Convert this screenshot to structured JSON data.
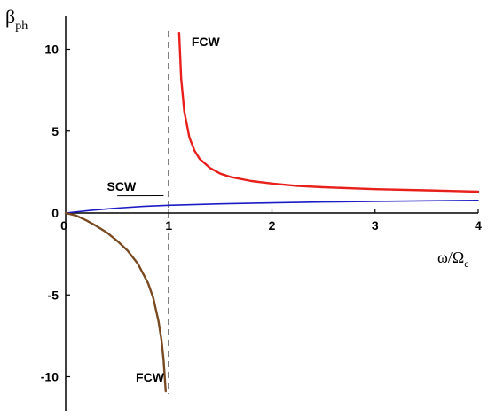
{
  "chart_data": {
    "type": "line",
    "title": "",
    "xlabel": "ω/Ω",
    "xlabel_sub": "c",
    "ylabel": "β",
    "ylabel_sub": "ph",
    "xlim": [
      0,
      4
    ],
    "ylim": [
      -12,
      12
    ],
    "x_ticks": [
      0,
      1,
      2,
      3,
      4
    ],
    "x_tick_labels": [
      "0",
      "1",
      "2",
      "3",
      "4"
    ],
    "y_ticks": [
      -10,
      -5,
      0,
      5,
      10
    ],
    "y_tick_labels": [
      "-10",
      "-5",
      "0",
      "5",
      "10"
    ],
    "grid": false,
    "asymptote_x": 1.0,
    "annotations": [
      {
        "name": "fcw-upper-label",
        "text": "FCW",
        "x": 1.22,
        "y": 10.2
      },
      {
        "name": "scw-label",
        "text": "SCW",
        "x": 0.4,
        "y": 1.35
      },
      {
        "name": "fcw-lower-label",
        "text": "FCW",
        "x": 0.68,
        "y": -10.3
      }
    ],
    "series": [
      {
        "color": "#e8201c",
        "x": [
          1.1,
          1.12,
          1.15,
          1.2,
          1.25,
          1.3,
          1.4,
          1.5,
          1.6,
          1.8,
          2.0,
          2.25,
          2.5,
          3.0,
          3.5,
          4.0
        ],
        "y": [
          11.0,
          8.2,
          6.2,
          4.6,
          3.8,
          3.3,
          2.75,
          2.4,
          2.2,
          1.95,
          1.8,
          1.65,
          1.57,
          1.45,
          1.38,
          1.3
        ]
      },
      {
        "color": "#1c1cc4",
        "x": [
          0,
          0.25,
          0.5,
          0.75,
          1.0,
          1.5,
          2.0,
          2.5,
          3.0,
          3.5,
          4.0
        ],
        "y": [
          0,
          0.17,
          0.3,
          0.4,
          0.47,
          0.56,
          0.62,
          0.67,
          0.71,
          0.74,
          0.77
        ]
      },
      {
        "color": "#7a4a22",
        "x": [
          0,
          0.1,
          0.2,
          0.3,
          0.4,
          0.5,
          0.6,
          0.7,
          0.8,
          0.85,
          0.9,
          0.93,
          0.95,
          0.97
        ],
        "y": [
          0,
          -0.15,
          -0.45,
          -0.8,
          -1.2,
          -1.7,
          -2.3,
          -3.1,
          -4.3,
          -5.2,
          -6.6,
          -7.8,
          -9.0,
          -10.9
        ]
      }
    ],
    "scw_pointer": {
      "from": [
        0.95,
        0.62
      ],
      "to": [
        0.8,
        0.5
      ]
    }
  }
}
